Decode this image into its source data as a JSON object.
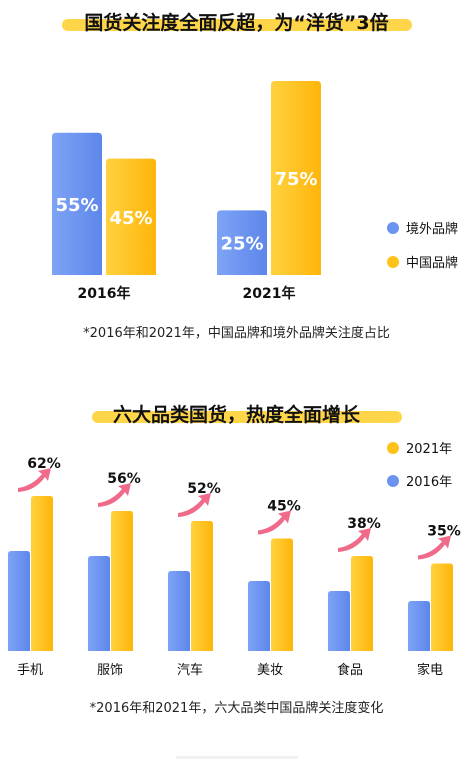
{
  "chart1_title": "国货关注度全面反超，为“洋货”3倍",
  "chart2_title": "六大品类国货，热度全面增长",
  "chart1_note": "*2016年和2021年，中国品牌和境外品牌关注度占比",
  "chart2_note": "*2016年和2021年，六大品类中国品牌关注度变化",
  "colors": {
    "blue": "#6b93ef",
    "gold": "#ffc21a",
    "arrow": "#f06a8a"
  },
  "chart_data": [
    {
      "type": "bar",
      "categories": [
        "2016年",
        "2021年"
      ],
      "series": [
        {
          "name": "境外品牌",
          "values": [
            55,
            25
          ]
        },
        {
          "name": "中国品牌",
          "values": [
            45,
            75
          ]
        }
      ],
      "value_suffix": "%",
      "ylim": [
        0,
        75
      ],
      "legend": "right"
    },
    {
      "type": "bar",
      "categories": [
        "手机",
        "服饰",
        "汽车",
        "美妆",
        "食品",
        "家电"
      ],
      "series": [
        {
          "name": "2016年",
          "values": [
            40,
            38,
            32,
            28,
            24,
            20
          ]
        },
        {
          "name": "2021年",
          "values": [
            62,
            56,
            52,
            45,
            38,
            35
          ]
        }
      ],
      "data_labels": [
        "62%",
        "56%",
        "52%",
        "45%",
        "38%",
        "35%"
      ],
      "legend": "top-right"
    }
  ]
}
